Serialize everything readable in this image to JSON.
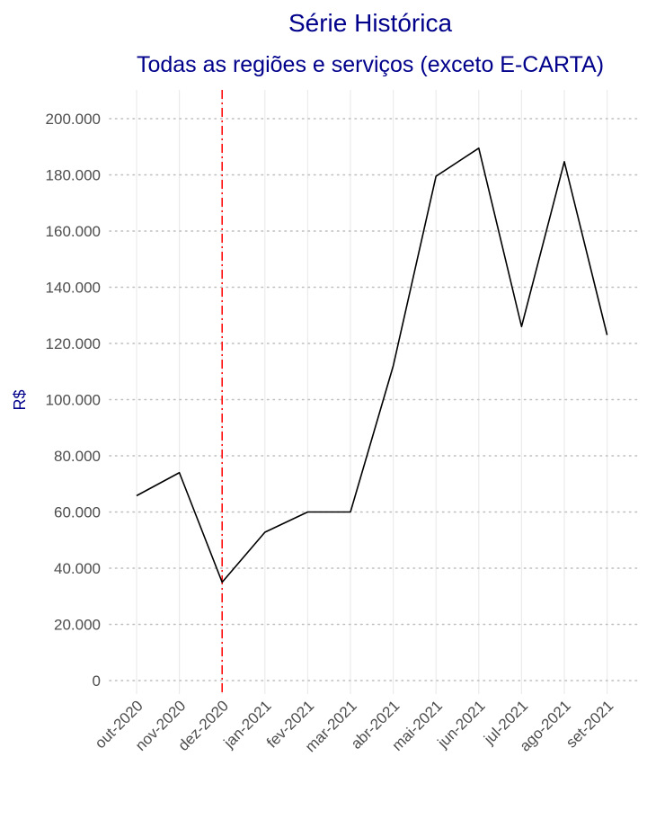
{
  "chart_data": {
    "type": "line",
    "title": "Série Histórica",
    "subtitle": "Todas as regiões e serviços (exceto E-CARTA)",
    "ylabel": "R$",
    "xlabel": "",
    "categories": [
      "out-2020",
      "nov-2020",
      "dez-2020",
      "jan-2021",
      "fev-2021",
      "mar-2021",
      "abr-2021",
      "mai-2021",
      "jun-2021",
      "jul-2021",
      "ago-2021",
      "set-2021"
    ],
    "series": [
      {
        "values": [
          65800,
          74000,
          35000,
          52800,
          60000,
          60000,
          112000,
          179500,
          189500,
          126000,
          184700,
          123000
        ]
      }
    ],
    "ylim": [
      0,
      200000
    ],
    "yticks": [
      0,
      20000,
      40000,
      60000,
      80000,
      100000,
      120000,
      140000,
      160000,
      180000,
      200000
    ],
    "ytick_labels": [
      "0",
      "20.000",
      "40.000",
      "60.000",
      "80.000",
      "100.000",
      "120.000",
      "140.000",
      "160.000",
      "180.000",
      "200.000"
    ],
    "reference_line": {
      "at_category": "dez-2020",
      "style": "dashdot"
    },
    "grid": true,
    "legend": "none",
    "colors": {
      "title": "#00008B",
      "line": "#000000",
      "reference_line": "#FF0000",
      "grid": "#BEBEBE",
      "vertical_grid": "#EBEBEB",
      "tick_text": "#4D4D4D"
    }
  }
}
